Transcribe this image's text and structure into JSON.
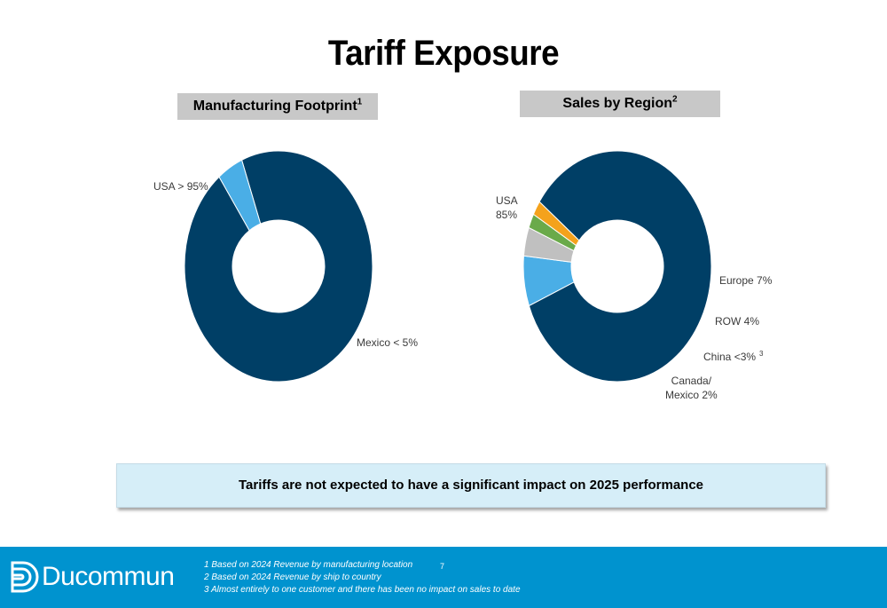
{
  "title": "Tariff Exposure",
  "charts": [
    {
      "header": "Manufacturing Footprint",
      "header_sup": "1"
    },
    {
      "header": "Sales by Region",
      "header_sup": "2"
    }
  ],
  "chart_data": [
    {
      "type": "pie",
      "title": "Manufacturing Footprint",
      "slices": [
        {
          "name": "USA",
          "label": "USA > 95%",
          "value": 95.5,
          "color": "#003f66"
        },
        {
          "name": "Mexico",
          "label": "Mexico < 5%",
          "value": 4.5,
          "color": "#4aaee6"
        }
      ]
    },
    {
      "type": "pie",
      "title": "Sales by Region",
      "slices": [
        {
          "name": "USA",
          "label": "USA",
          "value": 85,
          "value_label": "85%",
          "color": "#003f66"
        },
        {
          "name": "Europe",
          "label": "Europe 7%",
          "value": 7,
          "color": "#4aaee6"
        },
        {
          "name": "ROW",
          "label": "ROW 4%",
          "value": 4,
          "color": "#c0c0c0"
        },
        {
          "name": "China",
          "label": "China <3%",
          "label_sup": "3",
          "value": 2,
          "color": "#6aaa4a"
        },
        {
          "name": "Canada/Mexico",
          "label": "Canada/",
          "label2": "Mexico 2%",
          "value": 2,
          "color": "#f4a21c"
        }
      ]
    }
  ],
  "callout": "Tariffs are not expected to have a significant impact on 2025 performance",
  "footer": {
    "logo_text": "Ducommun",
    "page_number": "7",
    "footnotes": [
      "1  Based on 2024 Revenue by manufacturing location",
      "2  Based on 2024 Revenue by ship to country",
      "3  Almost entirely to one customer and there has been no impact on sales to date"
    ]
  }
}
